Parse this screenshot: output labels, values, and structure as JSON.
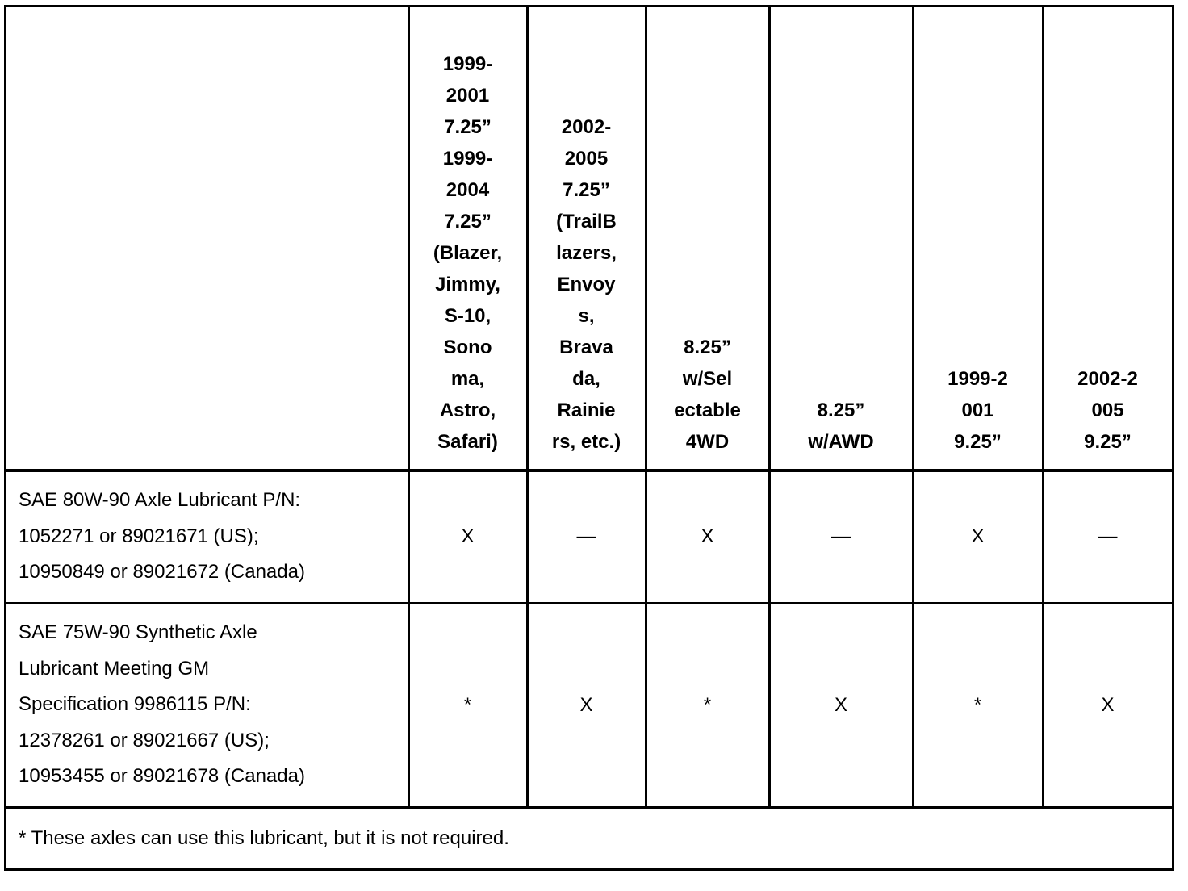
{
  "table": {
    "header": [
      [
        "1999-",
        "2001",
        "7.25”",
        "1999-",
        "2004",
        "7.25”",
        "(Blazer,",
        "Jimmy,",
        "S-10,",
        "Sono",
        "ma,",
        "Astro,",
        "Safari)"
      ],
      [
        "2002-",
        "2005",
        "7.25”",
        "(TrailB",
        "lazers,",
        "Envoy",
        "s,",
        "Brava",
        "da,",
        "Rainie",
        "rs, etc.)"
      ],
      [
        "8.25”",
        "w/Sel",
        "ectable",
        "4WD"
      ],
      [
        "8.25”",
        "w/AWD"
      ],
      [
        "1999-2",
        "001",
        "9.25”"
      ],
      [
        "2002-2",
        "005",
        "9.25”"
      ]
    ],
    "rows": [
      {
        "label": [
          "SAE 80W-90 Axle Lubricant P/N:",
          "1052271 or 89021671 (US);",
          "10950849 or 89021672 (Canada)"
        ],
        "cells": [
          "X",
          "—",
          "X",
          "—",
          "X",
          "—"
        ]
      },
      {
        "label": [
          "SAE 75W-90 Synthetic Axle",
          "Lubricant Meeting GM",
          "Specification 9986115 P/N:",
          "12378261 or 89021667 (US);",
          "10953455 or 89021678 (Canada)"
        ],
        "cells": [
          "*",
          "X",
          "*",
          "X",
          "*",
          "X"
        ]
      }
    ],
    "footnote": "* These axles can use this lubricant, but it is not required."
  }
}
